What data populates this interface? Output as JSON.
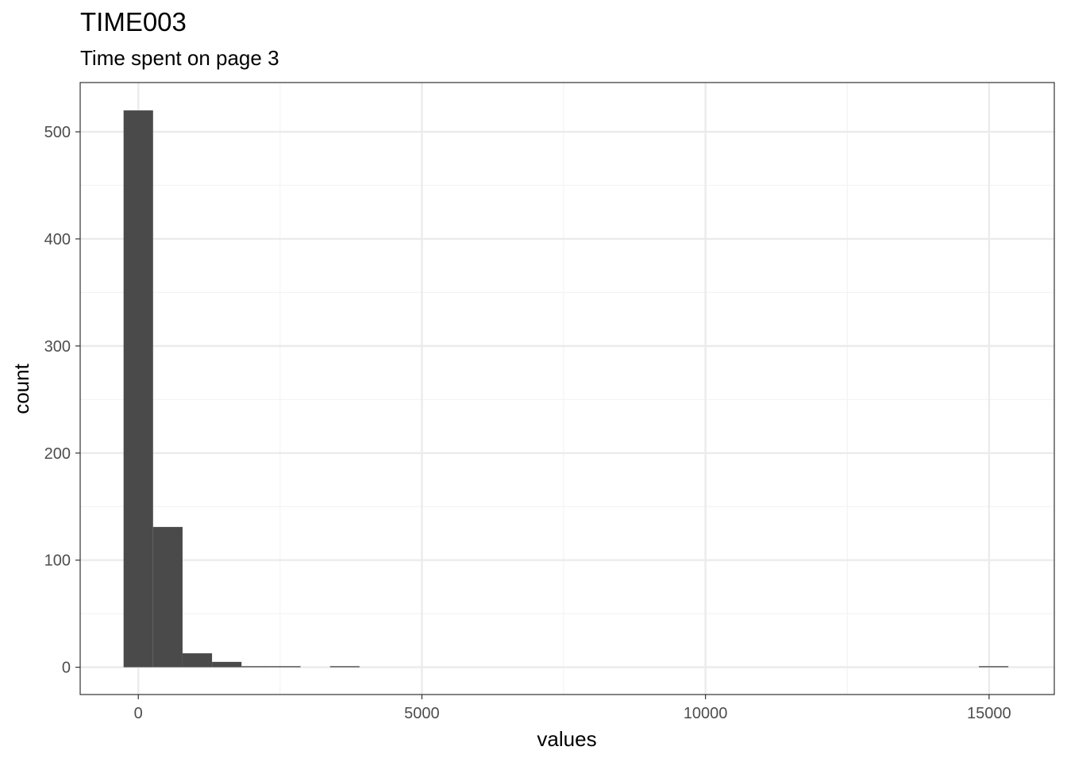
{
  "chart_data": {
    "type": "bar",
    "title": "TIME003",
    "subtitle": "Time spent on page 3",
    "xlabel": "values",
    "ylabel": "count",
    "bins": [
      {
        "x0": -260,
        "x1": 260,
        "count": 520
      },
      {
        "x0": 260,
        "x1": 780,
        "count": 131
      },
      {
        "x0": 780,
        "x1": 1300,
        "count": 13
      },
      {
        "x0": 1300,
        "x1": 1820,
        "count": 5
      },
      {
        "x0": 1820,
        "x1": 2340,
        "count": 1
      },
      {
        "x0": 2340,
        "x1": 2860,
        "count": 1
      },
      {
        "x0": 2860,
        "x1": 3380,
        "count": 0
      },
      {
        "x0": 3380,
        "x1": 3900,
        "count": 1
      },
      {
        "x0": 14820,
        "x1": 15340,
        "count": 1
      }
    ],
    "xlim": [
      -1025,
      16150
    ],
    "ylim": [
      -25.5,
      546
    ],
    "x_ticks": [
      0,
      5000,
      10000,
      15000
    ],
    "x_tick_labels": [
      "0",
      "5000",
      "10000",
      "15000"
    ],
    "y_ticks": [
      0,
      100,
      200,
      300,
      400,
      500
    ],
    "y_tick_labels": [
      "0",
      "100",
      "200",
      "300",
      "400",
      "500"
    ],
    "x_minor_ticks": [
      2500,
      7500,
      12500
    ],
    "y_minor_ticks": [
      50,
      150,
      250,
      350,
      450
    ],
    "grid": true,
    "legend": "none",
    "colors": {
      "bar": "#4a4a4a",
      "grid_major": "#ebebeb",
      "grid_minor": "#f3f3f3",
      "panel_border": "#333333",
      "tick_text": "#4d4d4d"
    }
  }
}
